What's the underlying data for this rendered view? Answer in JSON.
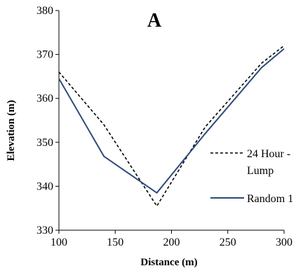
{
  "chart_data": {
    "type": "line",
    "title": "A",
    "xlabel": "Distance (m)",
    "ylabel": "Elevation (m)",
    "xlim": [
      100,
      300
    ],
    "ylim": [
      330,
      380
    ],
    "xticks": [
      100,
      150,
      200,
      250,
      300
    ],
    "yticks": [
      330,
      340,
      350,
      360,
      370,
      380
    ],
    "grid": false,
    "legend_position": "right",
    "series": [
      {
        "name": "24 Hour - Lump",
        "style": "dashed",
        "color": "#000000",
        "x": [
          100,
          140,
          187,
          230,
          280,
          300
        ],
        "y": [
          366,
          354,
          335.5,
          353.5,
          368,
          372
        ]
      },
      {
        "name": "Random 1",
        "style": "solid",
        "color": "#2e4a7a",
        "x": [
          100,
          140,
          187,
          230,
          280,
          300
        ],
        "y": [
          364.5,
          346.8,
          338.5,
          352,
          367,
          371.3
        ]
      }
    ]
  },
  "legend": {
    "line1_part1": "24 Hour -",
    "line1_part2": "Lump",
    "line2": "Random 1"
  }
}
